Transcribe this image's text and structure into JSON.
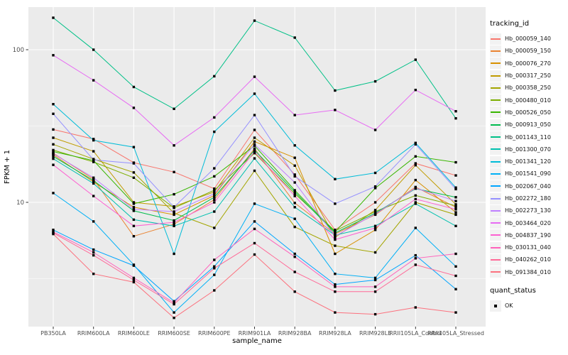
{
  "chart_data": {
    "type": "line",
    "title": "",
    "xlabel": "sample_name",
    "ylabel": "FPKM + 1",
    "yscale": "log10",
    "ylim": [
      1.5,
      190
    ],
    "y_major_ticks": [
      {
        "value": 100,
        "label": "100"
      },
      {
        "value": 10,
        "label": "10"
      }
    ],
    "y_minor_gridlines": [
      31.62,
      3.162
    ],
    "grid": "white-on-gray",
    "legend_position": "right",
    "legend_title": "tracking_id",
    "quant_legend": {
      "title": "quant_status",
      "items": [
        "OK"
      ]
    },
    "marker": "black-square",
    "x": [
      "PB350LA",
      "RRIM600LA",
      "RRIM600LE",
      "RRIM600SE",
      "RRIM600PE",
      "RRIM901LA",
      "RRIM928BA",
      "RRIM928LA",
      "RRIM928LE",
      "RRII105LA_Control",
      "RRII105LA_Stressed"
    ],
    "series": [
      {
        "name": "Hb_000059_140",
        "color": "#F8766D",
        "values": [
          30,
          26,
          18.2,
          15.8,
          12.3,
          29.8,
          15.2,
          6.6,
          10,
          18,
          15
        ]
      },
      {
        "name": "Hb_000059_150",
        "color": "#EA8331",
        "values": [
          21,
          14.2,
          6.0,
          7.2,
          10.4,
          22.5,
          9.9,
          6.2,
          8.3,
          12.6,
          9.3
        ]
      },
      {
        "name": "Hb_000076_270",
        "color": "#D89000",
        "values": [
          20.5,
          13.6,
          9.3,
          8.3,
          11.1,
          25,
          19.6,
          4.6,
          6.6,
          14,
          8.6
        ]
      },
      {
        "name": "Hb_000317_250",
        "color": "#C09B00",
        "values": [
          26.5,
          21.6,
          10,
          9.4,
          11.7,
          26.5,
          17.4,
          5.9,
          8.9,
          17.5,
          9.7
        ]
      },
      {
        "name": "Hb_000358_250",
        "color": "#A3A500",
        "values": [
          24,
          19.2,
          15.7,
          8.5,
          6.8,
          16.1,
          6.9,
          5.2,
          4.7,
          10,
          8.3
        ]
      },
      {
        "name": "Hb_000480_010",
        "color": "#7CAE00",
        "values": [
          22,
          18.4,
          14.5,
          9.2,
          12,
          21,
          11.4,
          6.5,
          8.7,
          11.1,
          9.5
        ]
      },
      {
        "name": "Hb_000526_050",
        "color": "#39B600",
        "values": [
          21.5,
          18.8,
          9.8,
          11.3,
          14.8,
          23.5,
          12,
          6.4,
          12.4,
          20,
          18.3
        ]
      },
      {
        "name": "Hb_000913_050",
        "color": "#00BB4E",
        "values": [
          20,
          13.9,
          8.8,
          7.6,
          10.8,
          22,
          11.7,
          6.3,
          8.5,
          12.3,
          10.8
        ]
      },
      {
        "name": "Hb_001143_110",
        "color": "#00C087",
        "values": [
          162,
          100,
          57,
          41,
          67,
          155,
          120,
          54,
          62,
          86,
          35.5
        ]
      },
      {
        "name": "Hb_001300_070",
        "color": "#00C0AF",
        "values": [
          19.3,
          13.3,
          7.7,
          7.0,
          8.7,
          19.4,
          9.3,
          6.1,
          7.0,
          9.8,
          7.0
        ]
      },
      {
        "name": "Hb_001341_120",
        "color": "#00BCD8",
        "values": [
          44,
          25.5,
          23,
          4.6,
          29,
          51.5,
          23.6,
          14.2,
          15.6,
          24.5,
          12.5
        ]
      },
      {
        "name": "Hb_001541_090",
        "color": "#00B0F6",
        "values": [
          11.5,
          7.5,
          3.9,
          1.9,
          3.35,
          9.8,
          7.8,
          3.4,
          3.2,
          6.8,
          3.8
        ]
      },
      {
        "name": "Hb_002067_040",
        "color": "#00A5FF",
        "values": [
          6.6,
          4.9,
          3.85,
          2.25,
          3.8,
          7.5,
          4.6,
          2.9,
          3.1,
          4.5,
          2.7
        ]
      },
      {
        "name": "Hb_002272_180",
        "color": "#9590FF",
        "values": [
          38,
          19,
          18,
          9.3,
          16.7,
          37.3,
          14.8,
          9.8,
          12.7,
          24,
          12.2
        ]
      },
      {
        "name": "Hb_002273_130",
        "color": "#BF80FF",
        "values": [
          20.8,
          14.5,
          9.0,
          8.7,
          11.4,
          24,
          13.5,
          6.0,
          8.4,
          12.4,
          10.2
        ]
      },
      {
        "name": "Hb_003464_020",
        "color": "#E76BF3",
        "values": [
          92,
          63,
          41.6,
          23.6,
          36,
          66.5,
          37.3,
          40.3,
          29.8,
          54.5,
          39.5
        ]
      },
      {
        "name": "Hb_004837_190",
        "color": "#FD61D1",
        "values": [
          17.6,
          11,
          7.0,
          7.4,
          10,
          21.5,
          11.0,
          5.7,
          6.8,
          10.5,
          9.0
        ]
      },
      {
        "name": "Hb_030131_040",
        "color": "#FF62BC",
        "values": [
          6.4,
          4.7,
          3.2,
          2.2,
          4.2,
          6.7,
          4.4,
          2.8,
          2.8,
          4.3,
          4.6
        ]
      },
      {
        "name": "Hb_040262_010",
        "color": "#FF6A98",
        "values": [
          6.3,
          4.5,
          3.1,
          2.15,
          3.7,
          5.4,
          3.5,
          2.6,
          2.6,
          3.9,
          3.3
        ]
      },
      {
        "name": "Hb_091384_010",
        "color": "#FC717E",
        "values": [
          6.2,
          3.4,
          3.0,
          1.75,
          2.65,
          4.55,
          2.6,
          1.9,
          1.85,
          2.05,
          1.9
        ]
      }
    ],
    "style": {
      "panel_bg": "#EBEBEB",
      "gridline": "#FFFFFF",
      "point_color": "#000000",
      "tick_text": "#4D4D4D",
      "axis_title_text": "#000000",
      "legend_key_bg": "#F2F2F2"
    }
  }
}
